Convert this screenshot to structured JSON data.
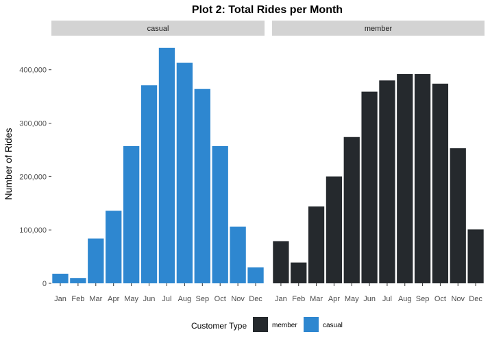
{
  "chart_data": {
    "type": "bar",
    "title": "Plot 2: Total Rides per Month",
    "xlabel": "",
    "ylabel": "Number of Rides",
    "ylim": [
      0,
      460000
    ],
    "yticks": [
      0,
      100000,
      200000,
      300000,
      400000
    ],
    "ytick_labels": [
      "0",
      "100,000",
      "200,000",
      "300,000",
      "400,000"
    ],
    "grid": false,
    "categories": [
      "Jan",
      "Feb",
      "Mar",
      "Apr",
      "May",
      "Jun",
      "Jul",
      "Aug",
      "Sep",
      "Oct",
      "Nov",
      "Dec"
    ],
    "facets": [
      {
        "label": "casual",
        "series": "casual",
        "color": "#2e87d0",
        "values": [
          18000,
          10000,
          84000,
          136000,
          257000,
          371000,
          441000,
          413000,
          364000,
          257000,
          106000,
          30000
        ]
      },
      {
        "label": "member",
        "series": "member",
        "color": "#25292d",
        "values": [
          79000,
          39000,
          144000,
          200000,
          274000,
          359000,
          380000,
          392000,
          392000,
          374000,
          253000,
          101000
        ]
      }
    ],
    "legend": {
      "title": "Customer Type",
      "placement": "bottom",
      "items": [
        {
          "name": "member",
          "color": "#25292d"
        },
        {
          "name": "casual",
          "color": "#2e87d0"
        }
      ]
    }
  }
}
